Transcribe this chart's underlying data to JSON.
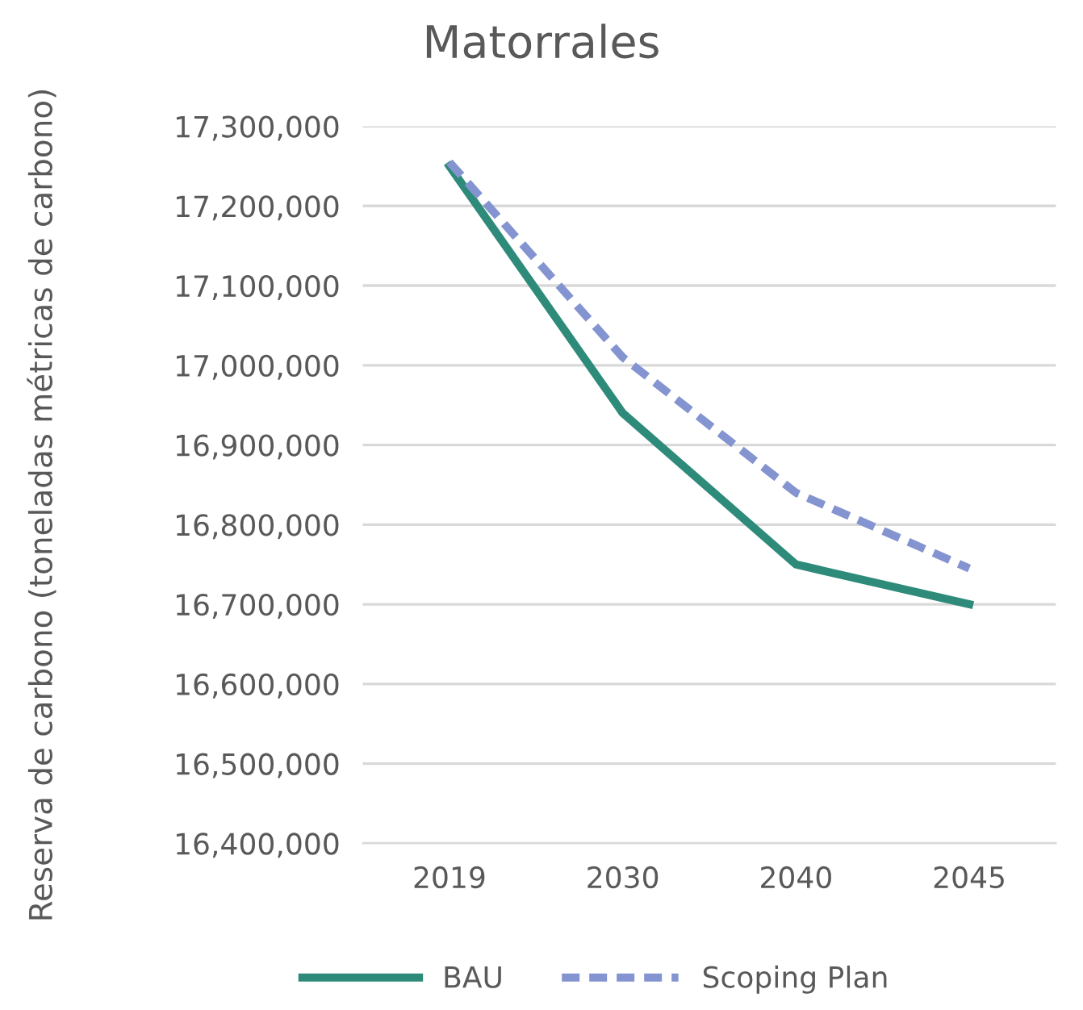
{
  "chart_data": {
    "type": "line",
    "title": "Matorrales",
    "ylabel": "Reserva de carbono (toneladas métricas de carbono)",
    "categories": [
      "2019",
      "2030",
      "2040",
      "2045"
    ],
    "series": [
      {
        "name": "BAU",
        "color": "#2e8b7a",
        "values": [
          17250000,
          16940000,
          16750000,
          16700000
        ],
        "line_style": "solid"
      },
      {
        "name": "Scoping Plan",
        "color": "#8494d0",
        "values": [
          17255000,
          17010000,
          16840000,
          16745000
        ],
        "line_style": "dashed"
      }
    ],
    "ylim": [
      16400000,
      17300000
    ],
    "yticks": [
      {
        "value": 16400000,
        "label": "16,400,000"
      },
      {
        "value": 16500000,
        "label": "16,500,000"
      },
      {
        "value": 16600000,
        "label": "16,600,000"
      },
      {
        "value": 16700000,
        "label": "16,700,000"
      },
      {
        "value": 16800000,
        "label": "16,800,000"
      },
      {
        "value": 16900000,
        "label": "16,900,000"
      },
      {
        "value": 17000000,
        "label": "17,000,000"
      },
      {
        "value": 17100000,
        "label": "17,100,000"
      },
      {
        "value": 17200000,
        "label": "17,200,000"
      },
      {
        "value": 17300000,
        "label": "17,300,000"
      }
    ],
    "grid": "y",
    "legend": "bottom",
    "marker": "none"
  }
}
